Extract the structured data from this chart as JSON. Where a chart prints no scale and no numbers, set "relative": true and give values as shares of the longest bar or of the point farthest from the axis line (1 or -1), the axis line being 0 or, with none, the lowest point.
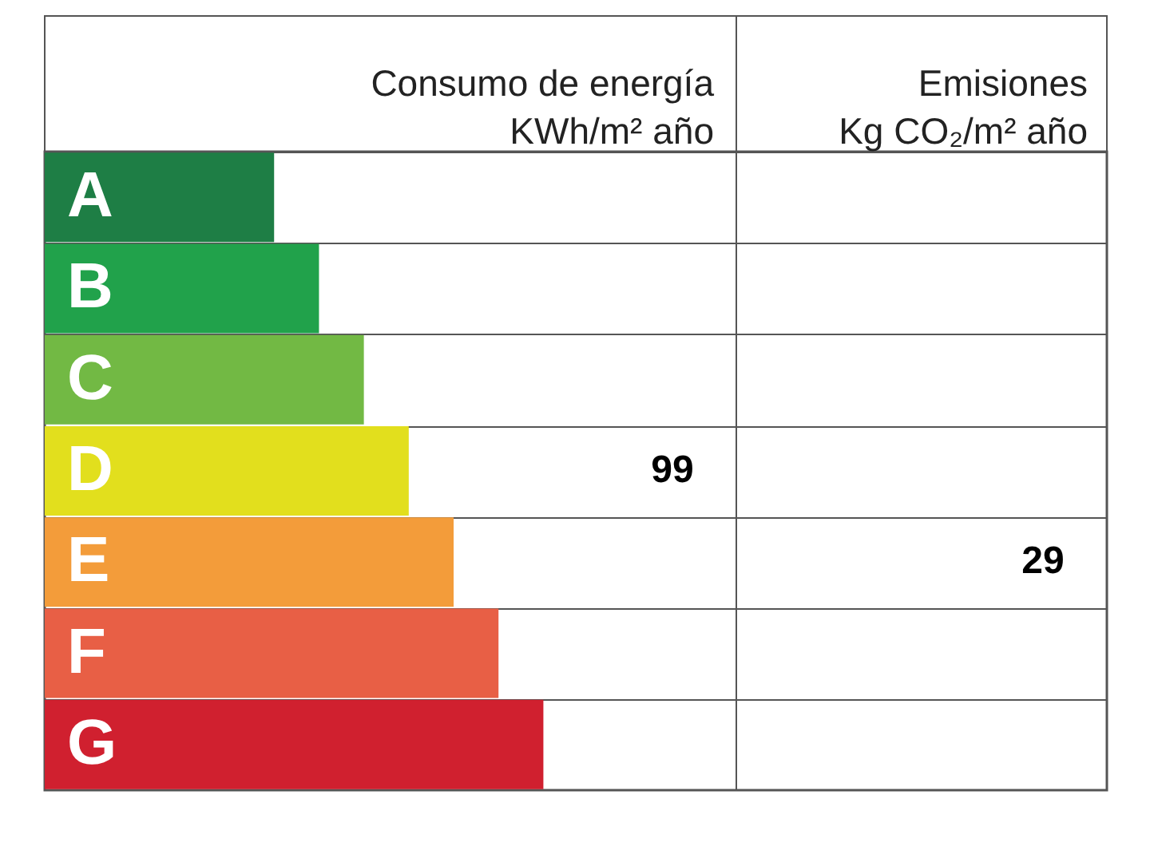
{
  "chart_data": {
    "type": "bar",
    "orientation": "horizontal",
    "relative": true,
    "categories": [
      "A",
      "B",
      "C",
      "D",
      "E",
      "F",
      "G"
    ],
    "values": [
      0.46,
      0.55,
      0.64,
      0.73,
      0.82,
      0.91,
      1.0
    ],
    "colors": [
      "#1e7e45",
      "#21a24b",
      "#72b944",
      "#e2df1d",
      "#f39c3a",
      "#e85f45",
      "#d0202f"
    ],
    "xlabel": "Consumo de energía\nKWh/m² año",
    "annotations": [
      "Emisiones\nKg CO₂/m² año",
      "99",
      "29"
    ],
    "grid": "y",
    "tick_labels": false
  }
}
